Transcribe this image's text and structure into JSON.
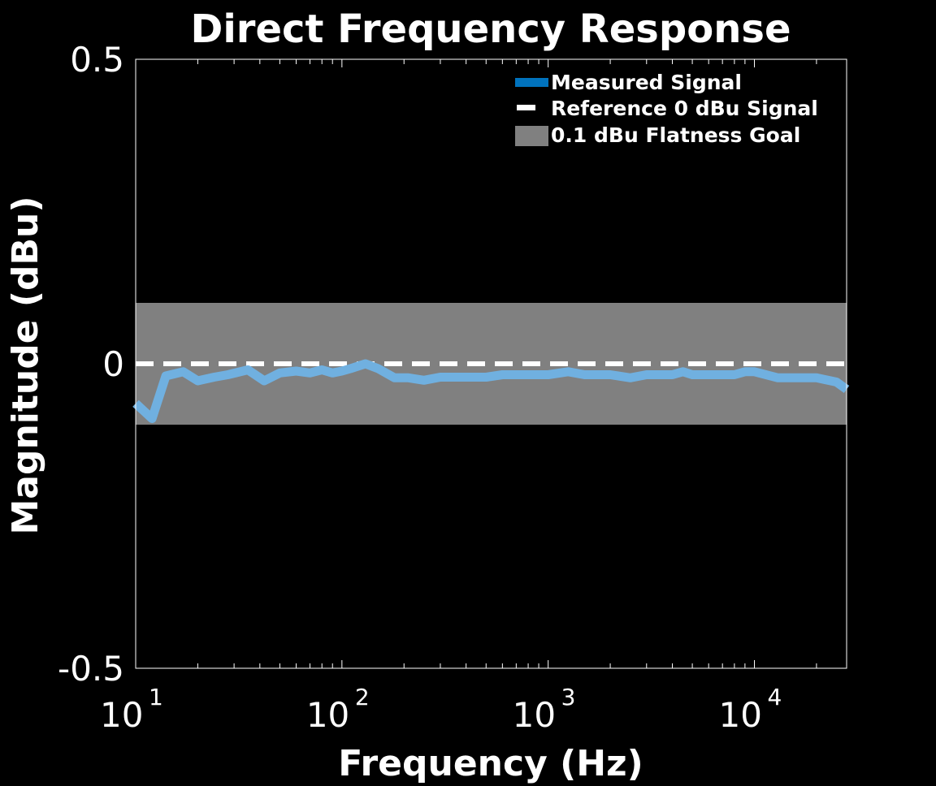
{
  "chart_data": {
    "type": "line",
    "title": "Direct Frequency Response",
    "xlabel": "Frequency (Hz)",
    "ylabel": "Magnitude (dBu)",
    "xscale": "log",
    "xlim": [
      10,
      28000
    ],
    "ylim": [
      -0.5,
      0.5
    ],
    "grid": false,
    "legend_position": "top-right",
    "x_ticks": [
      {
        "base": "10",
        "exp": "1",
        "value": 10
      },
      {
        "base": "10",
        "exp": "2",
        "value": 100
      },
      {
        "base": "10",
        "exp": "3",
        "value": 1000
      },
      {
        "base": "10",
        "exp": "4",
        "value": 10000
      }
    ],
    "y_ticks": [
      {
        "label": "0.5",
        "value": 0.5
      },
      {
        "label": "0",
        "value": 0
      },
      {
        "label": "-0.5",
        "value": -0.5
      }
    ],
    "band": {
      "name": "0.1 dBu Flatness Goal",
      "lower": -0.1,
      "upper": 0.1,
      "color": "#808080"
    },
    "reference": {
      "name": "Reference 0 dBu Signal",
      "value": 0,
      "color": "#ffffff"
    },
    "series": [
      {
        "name": "Measured Signal",
        "color": "#70b0e0",
        "legend_color": "#0072bd",
        "x": [
          10,
          12,
          14,
          17,
          20,
          24,
          28,
          35,
          42,
          50,
          60,
          70,
          80,
          90,
          100,
          110,
          130,
          150,
          180,
          210,
          250,
          300,
          400,
          500,
          600,
          800,
          1000,
          1250,
          1500,
          2000,
          2500,
          3000,
          4000,
          4500,
          5000,
          6000,
          8000,
          9000,
          10000,
          13000,
          16000,
          20000,
          25000,
          28000
        ],
        "values": [
          -0.065,
          -0.09,
          -0.02,
          -0.013,
          -0.028,
          -0.022,
          -0.018,
          -0.01,
          -0.028,
          -0.015,
          -0.012,
          -0.015,
          -0.01,
          -0.015,
          -0.012,
          -0.008,
          0.0,
          -0.008,
          -0.023,
          -0.023,
          -0.027,
          -0.022,
          -0.022,
          -0.022,
          -0.018,
          -0.018,
          -0.018,
          -0.013,
          -0.018,
          -0.018,
          -0.023,
          -0.018,
          -0.018,
          -0.013,
          -0.018,
          -0.018,
          -0.018,
          -0.013,
          -0.013,
          -0.023,
          -0.023,
          -0.023,
          -0.03,
          -0.042
        ]
      }
    ]
  }
}
